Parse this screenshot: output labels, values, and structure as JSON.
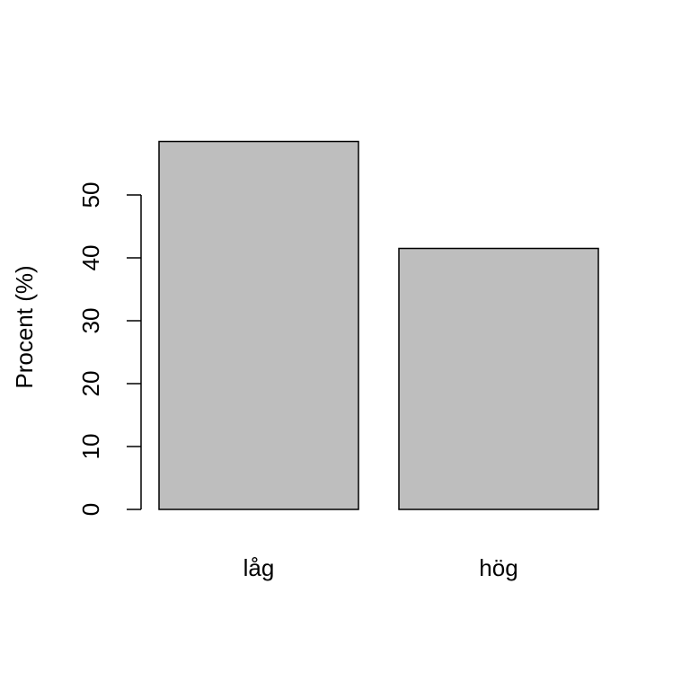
{
  "chart_data": {
    "type": "bar",
    "categories": [
      "låg",
      "hög"
    ],
    "values": [
      58.5,
      41.5
    ],
    "xlabel": "",
    "ylabel": "Procent (%)",
    "ylim": [
      0,
      58.5
    ],
    "yticks": [
      0,
      10,
      20,
      30,
      40,
      50
    ],
    "grid": false,
    "bar_color": "#bebebe",
    "border_color": "#000000"
  }
}
